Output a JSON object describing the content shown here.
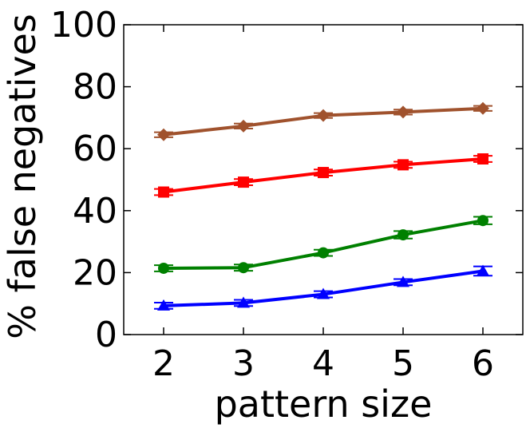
{
  "chart_data": {
    "type": "line",
    "title": "",
    "xlabel": "pattern size",
    "ylabel": "% false negatives",
    "x": [
      2,
      3,
      4,
      5,
      6
    ],
    "xticks": [
      "2",
      "3",
      "4",
      "5",
      "6"
    ],
    "yticks": [
      "0",
      "20",
      "40",
      "60",
      "80",
      "100"
    ],
    "xlim": [
      1.5,
      6.5
    ],
    "ylim": [
      0,
      100
    ],
    "grid": false,
    "legend": "none",
    "series": [
      {
        "color": "#a0522d",
        "marker": "diamond",
        "values": [
          64.5,
          67.3,
          70.7,
          71.8,
          73.0
        ],
        "err": [
          0.8,
          0.8,
          0.8,
          0.8,
          0.8
        ]
      },
      {
        "color": "#ff0000",
        "marker": "square",
        "values": [
          46.0,
          49.2,
          52.3,
          54.8,
          56.7
        ],
        "err": [
          1.0,
          1.0,
          1.0,
          1.0,
          1.0
        ]
      },
      {
        "color": "#008000",
        "marker": "circle",
        "values": [
          21.4,
          21.6,
          26.4,
          32.2,
          36.8
        ],
        "err": [
          1.0,
          1.0,
          1.0,
          1.2,
          1.2
        ]
      },
      {
        "color": "#0000ff",
        "marker": "triangle",
        "values": [
          9.3,
          10.2,
          13.0,
          16.9,
          20.5
        ],
        "err": [
          1.0,
          1.0,
          1.0,
          1.0,
          1.5
        ]
      }
    ]
  }
}
